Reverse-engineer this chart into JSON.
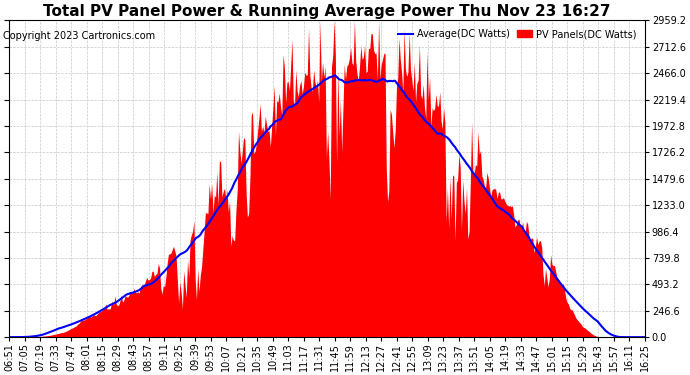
{
  "title": "Total PV Panel Power & Running Average Power Thu Nov 23 16:27",
  "copyright": "Copyright 2023 Cartronics.com",
  "legend_avg": "Average(DC Watts)",
  "legend_pv": "PV Panels(DC Watts)",
  "ylabel_values": [
    0.0,
    246.6,
    493.2,
    739.8,
    986.4,
    1233.0,
    1479.6,
    1726.2,
    1972.8,
    2219.4,
    2466.0,
    2712.6,
    2959.2
  ],
  "ymax": 2959.2,
  "ymin": 0.0,
  "x_labels": [
    "06:51",
    "07:05",
    "07:19",
    "07:33",
    "07:47",
    "08:01",
    "08:15",
    "08:29",
    "08:43",
    "08:57",
    "09:11",
    "09:25",
    "09:39",
    "09:53",
    "10:07",
    "10:21",
    "10:35",
    "10:49",
    "11:03",
    "11:17",
    "11:31",
    "11:45",
    "11:59",
    "12:13",
    "12:27",
    "12:41",
    "12:55",
    "13:09",
    "13:23",
    "13:37",
    "13:51",
    "14:05",
    "14:19",
    "14:33",
    "14:47",
    "15:01",
    "15:15",
    "15:29",
    "15:43",
    "15:57",
    "16:11",
    "16:25"
  ],
  "pv_color": "#ff0000",
  "avg_color": "#0000ff",
  "background_color": "#ffffff",
  "grid_color": "#c8c8c8",
  "title_fontsize": 11,
  "copyright_fontsize": 7,
  "tick_fontsize": 7
}
